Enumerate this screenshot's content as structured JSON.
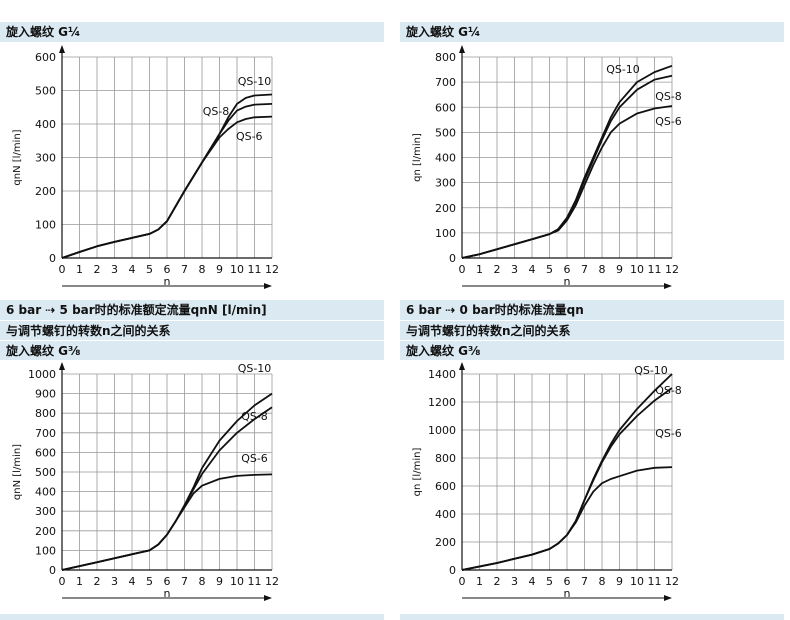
{
  "panels": [
    {
      "heading_lines": [],
      "thread_label": "旋入螺纹 G¼",
      "chart": {
        "type": "line",
        "ylabel": "qnN [l/min]",
        "xlabel": "n",
        "xlim": [
          0,
          12
        ],
        "ylim": [
          0,
          600
        ],
        "yticks": [
          0,
          100,
          200,
          300,
          400,
          500,
          600
        ],
        "xticks": [
          0,
          1,
          2,
          3,
          4,
          5,
          6,
          7,
          8,
          9,
          10,
          11,
          12
        ],
        "grid": true,
        "series": [
          {
            "name": "QS-10",
            "x": [
              0,
              1,
              2,
              3,
              4,
              5,
              5.5,
              6,
              7,
              8,
              9,
              9.5,
              10,
              10.5,
              11,
              12
            ],
            "y": [
              0,
              18,
              35,
              48,
              60,
              72,
              85,
              110,
              200,
              285,
              370,
              420,
              460,
              478,
              485,
              488
            ]
          },
          {
            "name": "QS-8",
            "x": [
              0,
              1,
              2,
              3,
              4,
              5,
              5.5,
              6,
              7,
              8,
              9,
              9.5,
              10,
              10.5,
              11,
              12
            ],
            "y": [
              0,
              18,
              35,
              48,
              60,
              72,
              85,
              110,
              200,
              285,
              370,
              410,
              440,
              452,
              458,
              460
            ]
          },
          {
            "name": "QS-6",
            "x": [
              0,
              1,
              2,
              3,
              4,
              5,
              5.5,
              6,
              7,
              8,
              9,
              9.5,
              10,
              10.5,
              11,
              12
            ],
            "y": [
              0,
              18,
              35,
              48,
              60,
              72,
              85,
              110,
              200,
              285,
              360,
              385,
              405,
              415,
              420,
              422
            ]
          }
        ]
      }
    },
    {
      "heading_lines": [],
      "thread_label": "旋入螺纹 G¼",
      "chart": {
        "type": "line",
        "ylabel": "qn [l/min]",
        "xlabel": "n",
        "xlim": [
          0,
          12
        ],
        "ylim": [
          0,
          800
        ],
        "yticks": [
          0,
          100,
          200,
          300,
          400,
          500,
          600,
          700,
          800
        ],
        "xticks": [
          0,
          1,
          2,
          3,
          4,
          5,
          6,
          7,
          8,
          9,
          10,
          11,
          12
        ],
        "grid": true,
        "series": [
          {
            "name": "QS-10",
            "x": [
              0,
              1,
              2,
              3,
              4,
              5,
              5.5,
              6,
              6.5,
              7,
              7.5,
              8,
              8.5,
              9,
              10,
              11,
              12
            ],
            "y": [
              0,
              15,
              35,
              55,
              75,
              95,
              115,
              160,
              230,
              320,
              400,
              480,
              560,
              620,
              700,
              740,
              765
            ]
          },
          {
            "name": "QS-8",
            "x": [
              0,
              1,
              2,
              3,
              4,
              5,
              5.5,
              6,
              6.5,
              7,
              7.5,
              8,
              8.5,
              9,
              10,
              11,
              12
            ],
            "y": [
              0,
              15,
              35,
              55,
              75,
              95,
              115,
              160,
              225,
              310,
              390,
              470,
              545,
              600,
              670,
              710,
              725
            ]
          },
          {
            "name": "QS-6",
            "x": [
              0,
              1,
              2,
              3,
              4,
              5,
              5.5,
              6,
              6.5,
              7,
              7.5,
              8,
              8.5,
              9,
              10,
              11,
              12
            ],
            "y": [
              0,
              15,
              35,
              55,
              75,
              95,
              110,
              150,
              210,
              290,
              370,
              440,
              500,
              535,
              575,
              595,
              605
            ]
          }
        ]
      }
    },
    {
      "heading_lines": [
        "6 bar ⇢ 5 bar时的标准额定流量qnN [l/min]",
        "与调节螺钉的转数n之间的关系"
      ],
      "thread_label": "旋入螺纹 G⅜",
      "chart": {
        "type": "line",
        "ylabel": "qnN [l/min]",
        "xlabel": "n",
        "xlim": [
          0,
          12
        ],
        "ylim": [
          0,
          1000
        ],
        "yticks": [
          0,
          100,
          200,
          300,
          400,
          500,
          600,
          700,
          800,
          900,
          1000
        ],
        "xticks": [
          0,
          1,
          2,
          3,
          4,
          5,
          6,
          7,
          8,
          9,
          10,
          11,
          12
        ],
        "grid": true,
        "series": [
          {
            "name": "QS-10",
            "x": [
              0,
              1,
              2,
              3,
              4,
              5,
              5.5,
              6,
              6.5,
              7,
              7.5,
              8,
              9,
              10,
              11,
              12
            ],
            "y": [
              0,
              20,
              40,
              60,
              80,
              100,
              130,
              180,
              250,
              330,
              420,
              520,
              660,
              760,
              840,
              900
            ]
          },
          {
            "name": "QS-8",
            "x": [
              0,
              1,
              2,
              3,
              4,
              5,
              5.5,
              6,
              6.5,
              7,
              7.5,
              8,
              9,
              10,
              11,
              12
            ],
            "y": [
              0,
              20,
              40,
              60,
              80,
              100,
              130,
              180,
              250,
              330,
              410,
              490,
              610,
              700,
              770,
              830
            ]
          },
          {
            "name": "QS-6",
            "x": [
              0,
              1,
              2,
              3,
              4,
              5,
              5.5,
              6,
              6.5,
              7,
              7.5,
              8,
              9,
              10,
              11,
              12
            ],
            "y": [
              0,
              20,
              40,
              60,
              80,
              100,
              130,
              180,
              250,
              320,
              390,
              430,
              465,
              480,
              485,
              488
            ]
          }
        ]
      }
    },
    {
      "heading_lines": [
        "6 bar ⇢ 0 bar时的标准流量qn",
        "与调节螺钉的转数n之间的关系"
      ],
      "thread_label": "旋入螺纹 G⅜",
      "chart": {
        "type": "line",
        "ylabel": "qn [l/min]",
        "xlabel": "n",
        "xlim": [
          0,
          12
        ],
        "ylim": [
          0,
          1400
        ],
        "yticks": [
          0,
          200,
          400,
          600,
          800,
          1000,
          1200,
          1400
        ],
        "xticks": [
          0,
          1,
          2,
          3,
          4,
          5,
          6,
          7,
          8,
          9,
          10,
          11,
          12
        ],
        "grid": true,
        "series": [
          {
            "name": "QS-10",
            "x": [
              0,
              1,
              2,
              3,
              4,
              5,
              5.5,
              6,
              6.5,
              7,
              7.5,
              8,
              8.5,
              9,
              10,
              11,
              12
            ],
            "y": [
              0,
              25,
              50,
              80,
              110,
              150,
              190,
              250,
              350,
              500,
              650,
              780,
              900,
              1000,
              1150,
              1280,
              1400
            ]
          },
          {
            "name": "QS-8",
            "x": [
              0,
              1,
              2,
              3,
              4,
              5,
              5.5,
              6,
              6.5,
              7,
              7.5,
              8,
              8.5,
              9,
              10,
              11,
              12
            ],
            "y": [
              0,
              25,
              50,
              80,
              110,
              150,
              190,
              250,
              350,
              500,
              640,
              770,
              880,
              970,
              1100,
              1210,
              1300
            ]
          },
          {
            "name": "QS-6",
            "x": [
              0,
              1,
              2,
              3,
              4,
              5,
              5.5,
              6,
              6.5,
              7,
              7.5,
              8,
              8.5,
              9,
              10,
              11,
              12
            ],
            "y": [
              0,
              25,
              50,
              80,
              110,
              150,
              190,
              250,
              340,
              460,
              560,
              620,
              650,
              670,
              710,
              730,
              735
            ]
          }
        ]
      }
    }
  ],
  "chart_data": [
    {
      "type": "line",
      "xlabel": "n",
      "ylabel": "qnN [l/min]",
      "ylim": [
        0,
        600
      ],
      "xlim": [
        0,
        12
      ],
      "series": "see panels.0.chart.series"
    },
    {
      "type": "line",
      "xlabel": "n",
      "ylabel": "qn [l/min]",
      "ylim": [
        0,
        800
      ],
      "xlim": [
        0,
        12
      ],
      "series": "see panels.1.chart.series"
    },
    {
      "type": "line",
      "xlabel": "n",
      "ylabel": "qnN [l/min]",
      "ylim": [
        0,
        1000
      ],
      "xlim": [
        0,
        12
      ],
      "series": "see panels.2.chart.series"
    },
    {
      "type": "line",
      "xlabel": "n",
      "ylabel": "qn [l/min]",
      "ylim": [
        0,
        1400
      ],
      "xlim": [
        0,
        12
      ],
      "series": "see panels.3.chart.series"
    }
  ]
}
